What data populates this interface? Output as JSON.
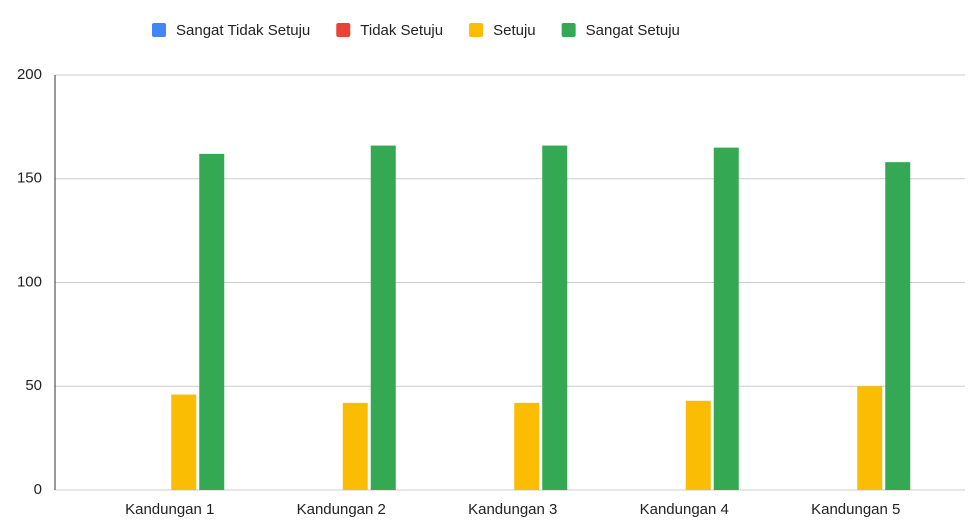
{
  "chart_data": {
    "type": "bar",
    "categories": [
      "Kandungan 1",
      "Kandungan 2",
      "Kandungan 3",
      "Kandungan 4",
      "Kandungan 5"
    ],
    "series": [
      {
        "name": "Sangat Tidak Setuju",
        "color": "#4285f4",
        "values": [
          0,
          0,
          0,
          0,
          0
        ]
      },
      {
        "name": "Tidak Setuju",
        "color": "#ea4335",
        "values": [
          0,
          0,
          0,
          0,
          0
        ]
      },
      {
        "name": "Setuju",
        "color": "#fbbc04",
        "values": [
          46,
          42,
          42,
          43,
          50
        ]
      },
      {
        "name": "Sangat Setuju",
        "color": "#34a853",
        "values": [
          162,
          166,
          166,
          165,
          158
        ]
      }
    ],
    "ylim": [
      0,
      200
    ],
    "yticks": [
      0,
      50,
      100,
      150,
      200
    ],
    "grid": true,
    "legend": "top"
  }
}
